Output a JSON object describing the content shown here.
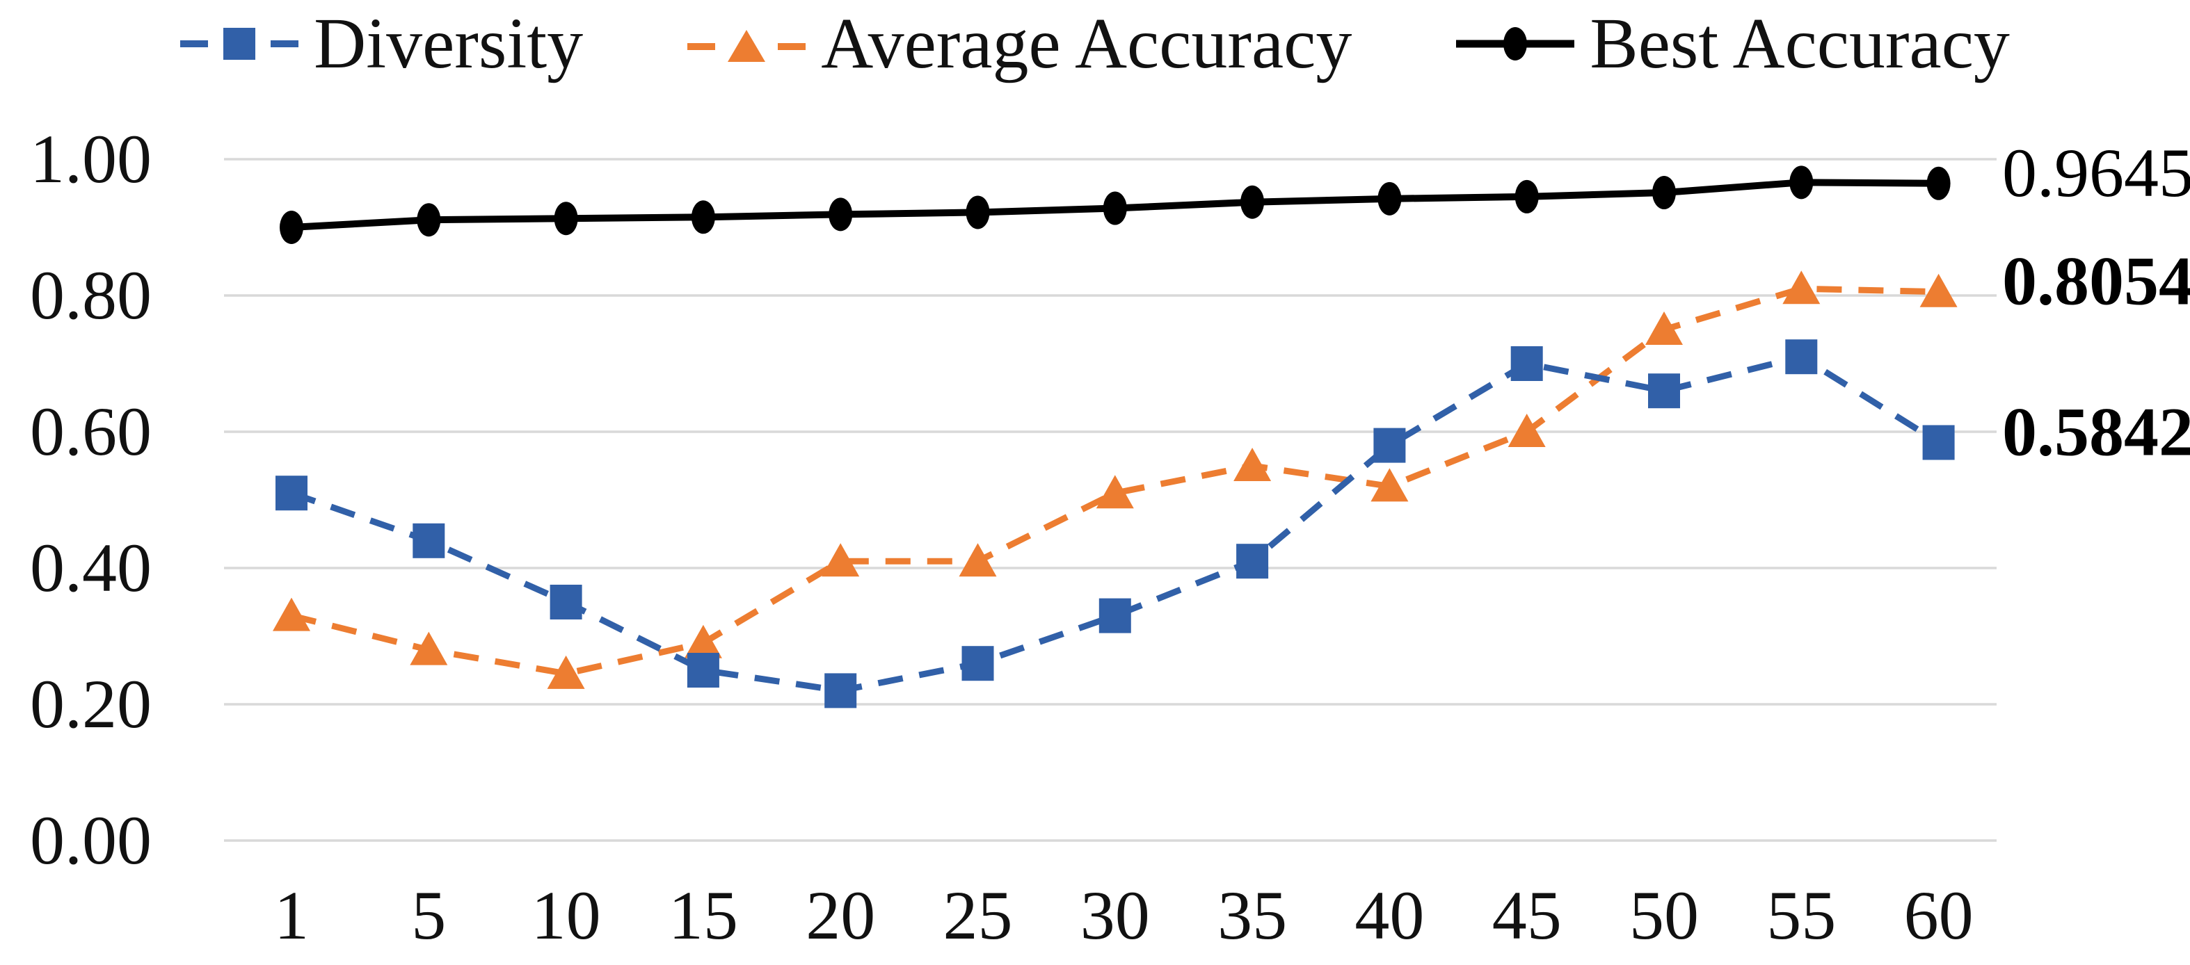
{
  "chart_data": {
    "type": "line",
    "title": "",
    "xlabel": "",
    "ylabel": "",
    "categories": [
      "1",
      "5",
      "10",
      "15",
      "20",
      "25",
      "30",
      "35",
      "40",
      "45",
      "50",
      "55",
      "60"
    ],
    "series": [
      {
        "name": "Diversity",
        "color": "#3160A8",
        "marker": "square",
        "line_style": "dashed",
        "values": [
          0.51,
          0.44,
          0.35,
          0.25,
          0.22,
          0.26,
          0.33,
          0.41,
          0.58,
          0.7,
          0.66,
          0.71,
          0.5842
        ]
      },
      {
        "name": "Average Accuracy",
        "color": "#ED7D31",
        "marker": "triangle",
        "line_style": "dashed",
        "values": [
          0.33,
          0.28,
          0.245,
          0.29,
          0.41,
          0.41,
          0.51,
          0.55,
          0.52,
          0.6,
          0.75,
          0.81,
          0.8054
        ]
      },
      {
        "name": "Best Accuracy",
        "color": "#000000",
        "marker": "circle",
        "line_style": "solid",
        "values": [
          0.9,
          0.911,
          0.913,
          0.915,
          0.919,
          0.922,
          0.928,
          0.937,
          0.942,
          0.945,
          0.951,
          0.966,
          0.9645
        ]
      }
    ],
    "y_ticks": [
      {
        "label": "1.00",
        "value": 1.0
      },
      {
        "label": "0.80",
        "value": 0.8
      },
      {
        "label": "0.60",
        "value": 0.6
      },
      {
        "label": "0.40",
        "value": 0.4
      },
      {
        "label": "0.20",
        "value": 0.2
      },
      {
        "label": "0.00",
        "value": 0.0
      }
    ],
    "ylim": [
      0,
      1
    ],
    "grid": true,
    "grid_color": "#D9D9D9",
    "text_color": "#111111",
    "legend_position": "top",
    "end_labels": [
      {
        "text": "0.9645",
        "value": 0.9645,
        "bold": false
      },
      {
        "text": "0.8054",
        "value": 0.8054,
        "bold": true
      },
      {
        "text": "0.5842",
        "value": 0.5842,
        "bold": true
      }
    ]
  }
}
